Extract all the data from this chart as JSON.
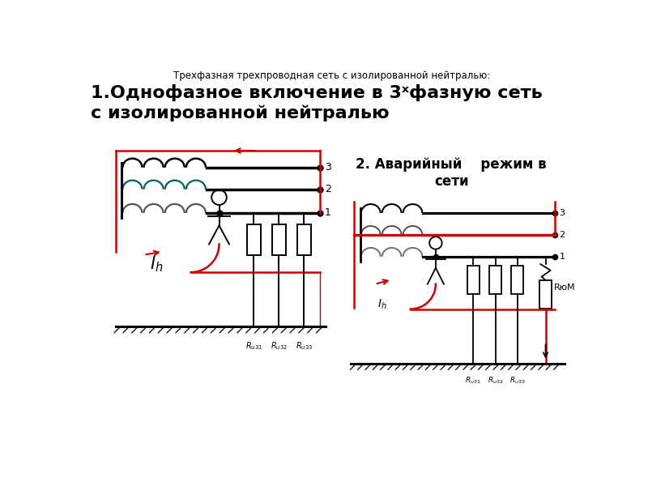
{
  "title_small": "Трехфазная трехпроводная сеть с изолированной нейтралью:",
  "title_large_line1": "1.Однофазное включение в 3ˣфазную сеть",
  "title_large_line2": "с изолированной нейтралью",
  "label_Ih": "$I_h$",
  "label_Ih2": "$I_h$",
  "label_Ruz1": "$R_{u31}$",
  "label_Ruz2": "$R_{u32}$",
  "label_Ruz3": "$R_{u33}$",
  "label_R3M": "RюM",
  "bg_color": "#ffffff",
  "red_color": "#cc0000",
  "black_color": "#000000"
}
